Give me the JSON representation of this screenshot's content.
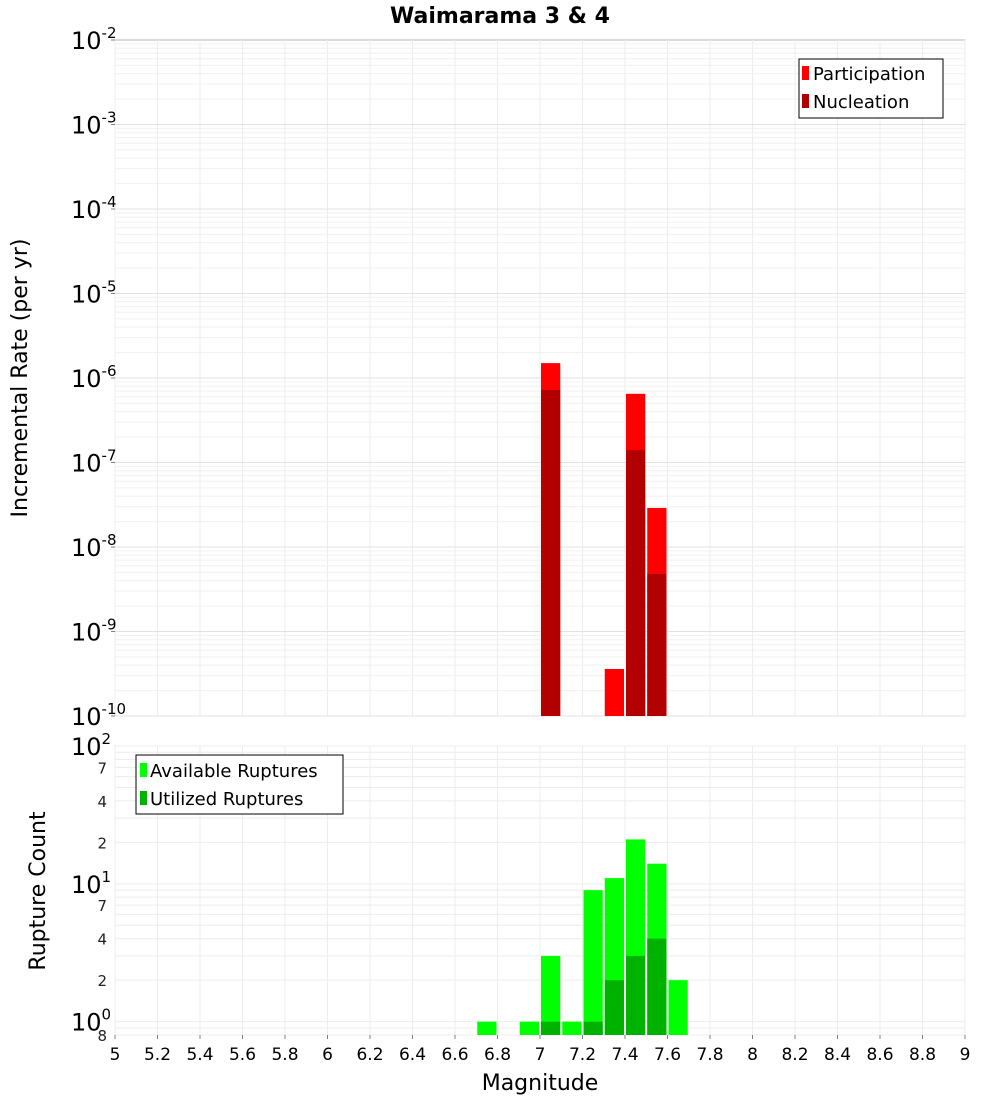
{
  "chart_data": [
    {
      "type": "bar",
      "title": "Waimarama 3 & 4",
      "ylabel": "Incremental Rate (per yr)",
      "xlabel": "",
      "xlim": [
        5,
        9
      ],
      "yscale": "log",
      "ylim_exp": [
        -10,
        -2
      ],
      "bin_width": 0.1,
      "y_major_ticks": [
        {
          "base": "10",
          "exp": "-2",
          "e": -2
        },
        {
          "base": "10",
          "exp": "-3",
          "e": -3
        },
        {
          "base": "10",
          "exp": "-4",
          "e": -4
        },
        {
          "base": "10",
          "exp": "-5",
          "e": -5
        },
        {
          "base": "10",
          "exp": "-6",
          "e": -6
        },
        {
          "base": "10",
          "exp": "-7",
          "e": -7
        },
        {
          "base": "10",
          "exp": "-8",
          "e": -8
        },
        {
          "base": "10",
          "exp": "-9",
          "e": -9
        },
        {
          "base": "10",
          "exp": "-10",
          "e": -10
        }
      ],
      "legend": [
        {
          "label": "Participation",
          "color": "#ff0000"
        },
        {
          "label": "Nucleation",
          "color": "#b20000"
        }
      ],
      "series": [
        {
          "name": "Participation",
          "color": "#ff0000",
          "x": [
            7.05,
            7.35,
            7.45,
            7.55
          ],
          "values": [
            1.5e-06,
            3.6e-10,
            6.5e-07,
            2.9e-08
          ]
        },
        {
          "name": "Nucleation",
          "color": "#b20000",
          "x": [
            7.05,
            7.45,
            7.55
          ],
          "values": [
            7.2e-07,
            1.4e-07,
            4.8e-09
          ]
        }
      ]
    },
    {
      "type": "bar",
      "title": "",
      "ylabel": "Rupture Count",
      "xlabel": "Magnitude",
      "xlim": [
        5,
        9
      ],
      "yscale": "log",
      "ylim": [
        0.8,
        100
      ],
      "bin_width": 0.1,
      "x_ticks": [
        "5",
        "5.2",
        "5.4",
        "5.6",
        "5.8",
        "6",
        "6.2",
        "6.4",
        "6.6",
        "6.8",
        "7",
        "7.2",
        "7.4",
        "7.6",
        "7.8",
        "8",
        "8.2",
        "8.4",
        "8.6",
        "8.8",
        "9"
      ],
      "y_major_ticks": [
        {
          "base": "10",
          "exp": "2",
          "e": 2
        },
        {
          "base": "10",
          "exp": "1",
          "e": 1
        },
        {
          "base": "10",
          "exp": "0",
          "e": 0
        }
      ],
      "y_minor_ticks": [
        {
          "label": "7",
          "v": 70
        },
        {
          "label": "4",
          "v": 40
        },
        {
          "label": "2",
          "v": 20
        },
        {
          "label": "7",
          "v": 7
        },
        {
          "label": "4",
          "v": 4
        },
        {
          "label": "2",
          "v": 2
        },
        {
          "label": "8",
          "v": 0.8
        }
      ],
      "legend": [
        {
          "label": "Available Ruptures",
          "color": "#00ff00"
        },
        {
          "label": "Utilized Ruptures",
          "color": "#00b200"
        }
      ],
      "series": [
        {
          "name": "Available Ruptures",
          "color": "#00ff00",
          "x": [
            6.75,
            6.95,
            7.05,
            7.15,
            7.25,
            7.35,
            7.45,
            7.55,
            7.65
          ],
          "values": [
            1,
            1,
            3,
            1,
            9,
            11,
            21,
            14,
            2
          ]
        },
        {
          "name": "Utilized Ruptures",
          "color": "#00b200",
          "x": [
            7.05,
            7.25,
            7.35,
            7.45,
            7.55
          ],
          "values": [
            1,
            1,
            2,
            3,
            4
          ]
        }
      ]
    }
  ]
}
